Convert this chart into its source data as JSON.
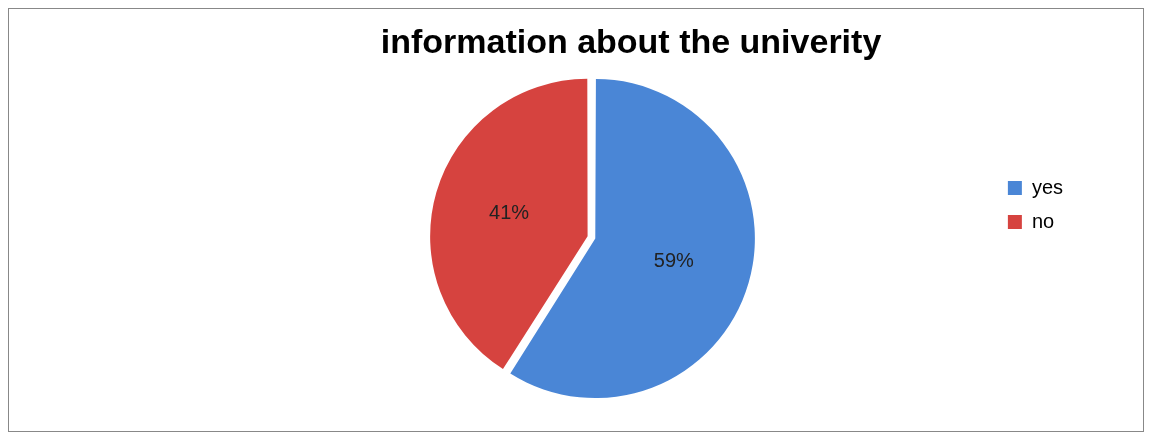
{
  "chart_data": {
    "type": "pie",
    "title": "information about the univerity",
    "categories": [
      "yes",
      "no"
    ],
    "values": [
      59,
      41
    ],
    "colors": [
      "#4a86d6",
      "#d6433f"
    ],
    "value_labels": [
      "59%",
      "41%"
    ],
    "legend": "right"
  }
}
